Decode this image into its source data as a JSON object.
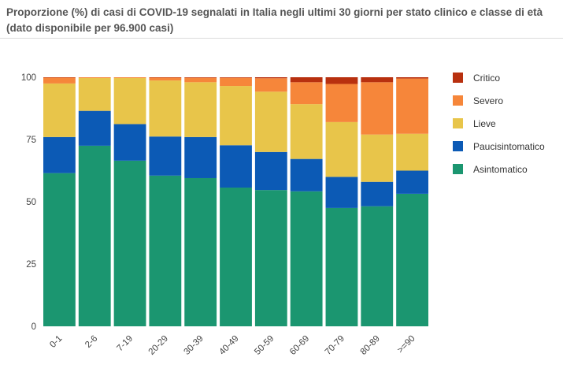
{
  "chart_data": {
    "type": "bar",
    "stacked": true,
    "title": "Proporzione (%) di casi di COVID-19 segnalati in Italia negli ultimi 30 giorni per stato clinico e classe di età (dato disponibile per 96.900 casi)",
    "categories": [
      "0-1",
      "2-6",
      "7-19",
      "20-29",
      "30-39",
      "40-49",
      "50-59",
      "60-69",
      "70-79",
      "80-89",
      ">=90"
    ],
    "ylim": [
      0,
      100
    ],
    "yticks": [
      0,
      25,
      50,
      75,
      100
    ],
    "grid": false,
    "legend_position": "right",
    "series": [
      {
        "name": "Asintomatico",
        "color": "#1b9670",
        "values": [
          61.5,
          72.5,
          66.5,
          60.5,
          59.5,
          55.7,
          54.7,
          54.2,
          47.5,
          48.2,
          53.2
        ]
      },
      {
        "name": "Paucisintomatico",
        "color": "#0c5ab5",
        "values": [
          14.5,
          14.0,
          14.7,
          15.7,
          16.5,
          17.0,
          15.3,
          13.0,
          12.5,
          9.8,
          9.3
        ]
      },
      {
        "name": "Lieve",
        "color": "#e8c54a",
        "values": [
          21.5,
          13.2,
          18.5,
          22.5,
          22.0,
          23.8,
          24.2,
          22.0,
          22.0,
          19.0,
          14.8
        ]
      },
      {
        "name": "Severo",
        "color": "#f6863a",
        "values": [
          2.4,
          0.3,
          0.3,
          1.2,
          1.8,
          3.3,
          5.4,
          8.8,
          15.3,
          21.0,
          22.2
        ]
      },
      {
        "name": "Critico",
        "color": "#b8300f",
        "values": [
          0.1,
          0.0,
          0.0,
          0.1,
          0.2,
          0.2,
          0.4,
          2.0,
          2.7,
          2.0,
          0.5
        ]
      }
    ],
    "legend_order": [
      "Critico",
      "Severo",
      "Lieve",
      "Paucisintomatico",
      "Asintomatico"
    ]
  }
}
